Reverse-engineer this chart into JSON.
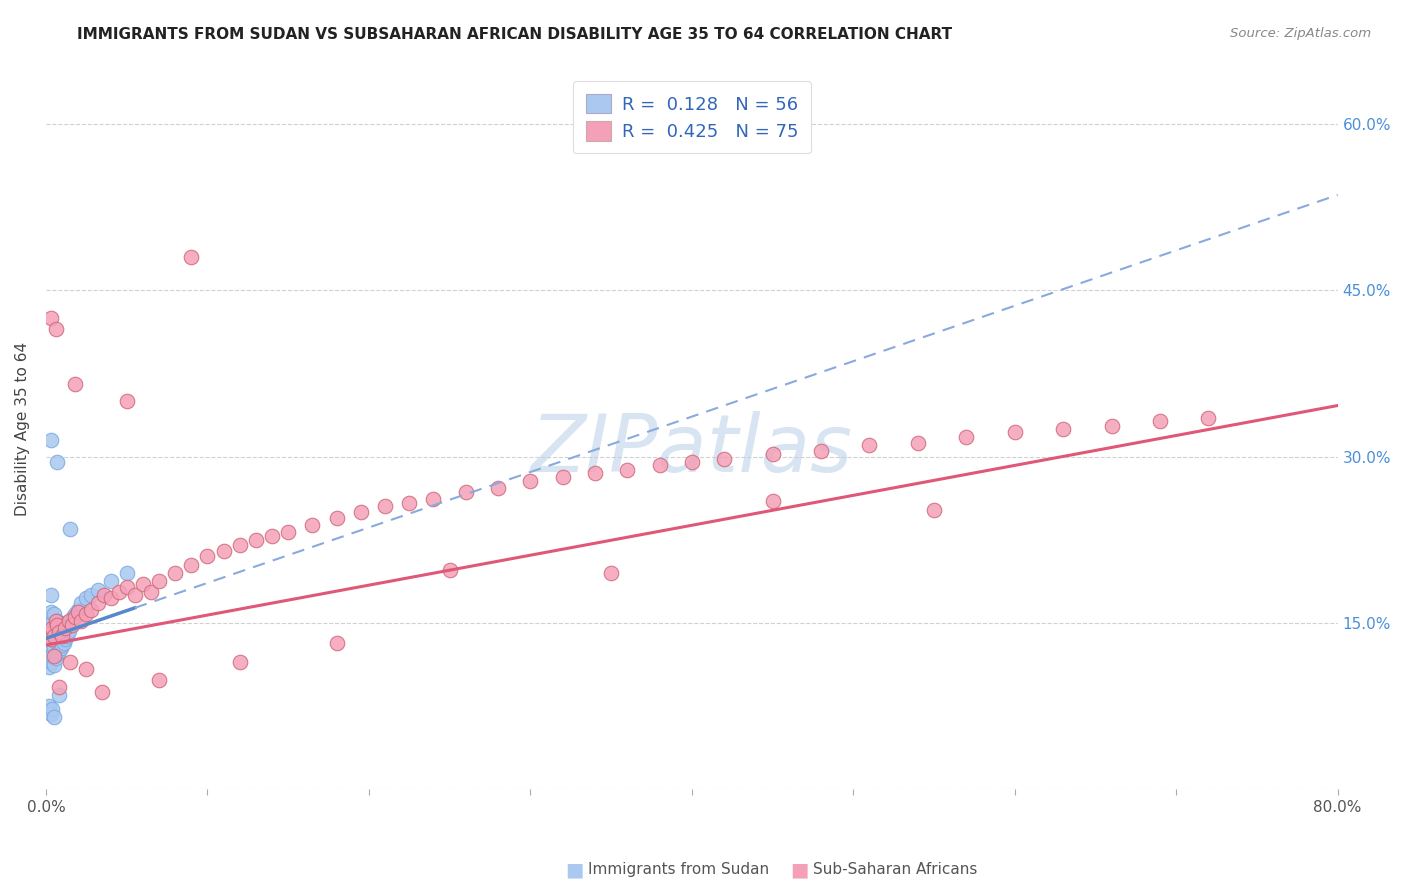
{
  "title": "IMMIGRANTS FROM SUDAN VS SUBSAHARAN AFRICAN DISABILITY AGE 35 TO 64 CORRELATION CHART",
  "source": "Source: ZipAtlas.com",
  "ylabel": "Disability Age 35 to 64",
  "xlim": [
    0.0,
    0.8
  ],
  "ylim": [
    0.0,
    0.65
  ],
  "color_blue": "#aac8f0",
  "color_pink": "#f4a0b8",
  "trendline_blue_solid": "#5588cc",
  "trendline_blue_dashed": "#88aadd",
  "trendline_pink": "#e05878",
  "legend_label1": "R =  0.128   N = 56",
  "legend_label2": "R =  0.425   N = 75",
  "watermark": "ZIPatlas",
  "bottom_label1": "Immigrants from Sudan",
  "bottom_label2": "Sub-Saharan Africans",
  "blue_x": [
    0.001,
    0.001,
    0.001,
    0.002,
    0.002,
    0.002,
    0.002,
    0.003,
    0.003,
    0.003,
    0.003,
    0.003,
    0.004,
    0.004,
    0.004,
    0.005,
    0.005,
    0.005,
    0.005,
    0.006,
    0.006,
    0.006,
    0.007,
    0.007,
    0.007,
    0.008,
    0.008,
    0.009,
    0.009,
    0.01,
    0.01,
    0.011,
    0.011,
    0.012,
    0.012,
    0.013,
    0.014,
    0.015,
    0.016,
    0.017,
    0.018,
    0.02,
    0.022,
    0.025,
    0.028,
    0.032,
    0.04,
    0.05,
    0.003,
    0.007,
    0.015,
    0.008,
    0.002,
    0.003,
    0.004,
    0.005
  ],
  "blue_y": [
    0.12,
    0.13,
    0.145,
    0.11,
    0.125,
    0.14,
    0.155,
    0.115,
    0.13,
    0.145,
    0.16,
    0.175,
    0.12,
    0.135,
    0.15,
    0.112,
    0.128,
    0.143,
    0.158,
    0.118,
    0.133,
    0.148,
    0.122,
    0.137,
    0.152,
    0.125,
    0.14,
    0.127,
    0.142,
    0.13,
    0.145,
    0.132,
    0.147,
    0.135,
    0.15,
    0.138,
    0.143,
    0.148,
    0.152,
    0.155,
    0.158,
    0.162,
    0.168,
    0.172,
    0.175,
    0.18,
    0.188,
    0.195,
    0.315,
    0.295,
    0.235,
    0.085,
    0.075,
    0.068,
    0.072,
    0.065
  ],
  "pink_x": [
    0.002,
    0.003,
    0.004,
    0.005,
    0.006,
    0.007,
    0.008,
    0.01,
    0.012,
    0.014,
    0.016,
    0.018,
    0.02,
    0.022,
    0.025,
    0.028,
    0.032,
    0.036,
    0.04,
    0.045,
    0.05,
    0.055,
    0.06,
    0.065,
    0.07,
    0.08,
    0.09,
    0.1,
    0.11,
    0.12,
    0.13,
    0.14,
    0.15,
    0.165,
    0.18,
    0.195,
    0.21,
    0.225,
    0.24,
    0.26,
    0.28,
    0.3,
    0.32,
    0.34,
    0.36,
    0.38,
    0.4,
    0.42,
    0.45,
    0.48,
    0.51,
    0.54,
    0.57,
    0.6,
    0.63,
    0.66,
    0.69,
    0.72,
    0.005,
    0.015,
    0.025,
    0.008,
    0.035,
    0.07,
    0.12,
    0.18,
    0.25,
    0.35,
    0.45,
    0.55,
    0.003,
    0.006,
    0.018,
    0.05,
    0.09
  ],
  "pink_y": [
    0.14,
    0.135,
    0.145,
    0.138,
    0.152,
    0.148,
    0.142,
    0.138,
    0.145,
    0.152,
    0.148,
    0.155,
    0.16,
    0.152,
    0.158,
    0.162,
    0.168,
    0.175,
    0.172,
    0.178,
    0.182,
    0.175,
    0.185,
    0.178,
    0.188,
    0.195,
    0.202,
    0.21,
    0.215,
    0.22,
    0.225,
    0.228,
    0.232,
    0.238,
    0.245,
    0.25,
    0.255,
    0.258,
    0.262,
    0.268,
    0.272,
    0.278,
    0.282,
    0.285,
    0.288,
    0.292,
    0.295,
    0.298,
    0.302,
    0.305,
    0.31,
    0.312,
    0.318,
    0.322,
    0.325,
    0.328,
    0.332,
    0.335,
    0.12,
    0.115,
    0.108,
    0.092,
    0.088,
    0.098,
    0.115,
    0.132,
    0.198,
    0.195,
    0.26,
    0.252,
    0.425,
    0.415,
    0.365,
    0.35,
    0.48
  ]
}
